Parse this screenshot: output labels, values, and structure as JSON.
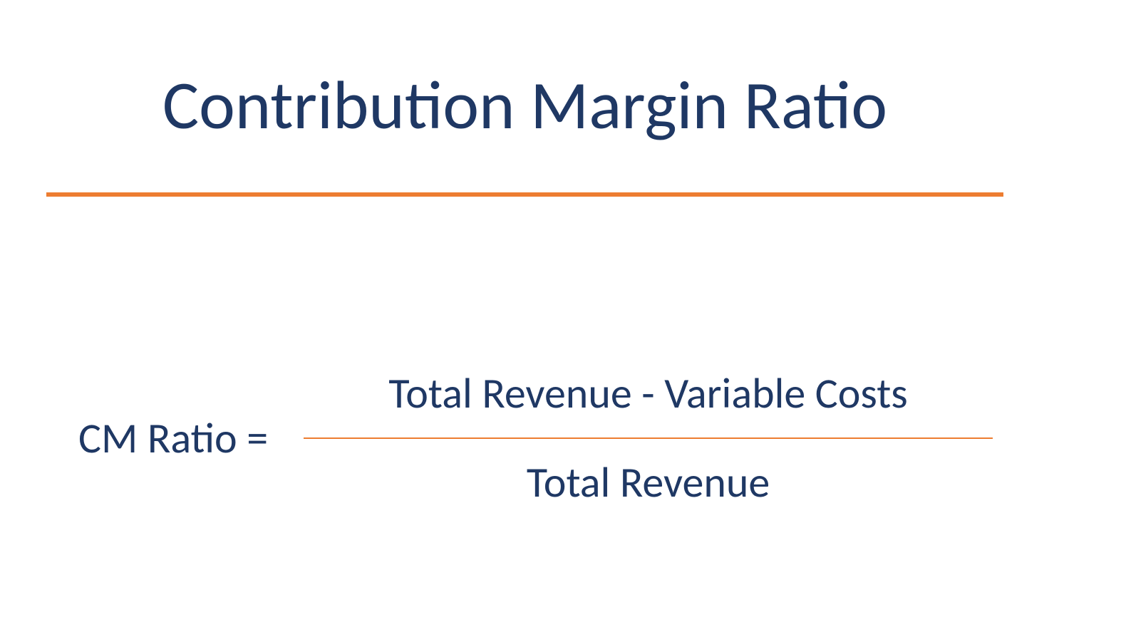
{
  "slide": {
    "title": "Contribution Margin Ratio",
    "title_color": "#1f3864",
    "title_fontsize": 96,
    "underline_color": "#ed7d31",
    "underline_thickness": 6,
    "background_color": "#ffffff"
  },
  "formula": {
    "lhs": "CM Ratio =",
    "numerator": "Total Revenue - Variable Costs",
    "denominator": "Total Revenue",
    "text_color": "#1f3864",
    "fontsize": 60,
    "fraction_line_color": "#ed7d31",
    "fraction_line_thickness": 2
  }
}
